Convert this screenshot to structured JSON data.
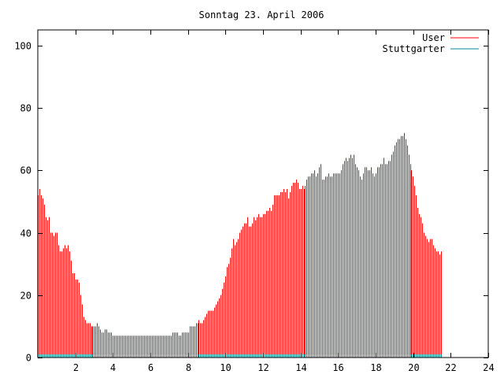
{
  "chart_data": {
    "type": "bar",
    "title": "Sonntag 23. April 2006",
    "xlabel": "",
    "ylabel": "",
    "xlim": [
      0,
      24
    ],
    "ylim": [
      0,
      105
    ],
    "x_ticks": [
      "2",
      "4",
      "6",
      "8",
      "10",
      "12",
      "14",
      "16",
      "18",
      "20",
      "22",
      "24"
    ],
    "y_ticks": [
      "0",
      "20",
      "40",
      "60",
      "80",
      "100"
    ],
    "grid": false,
    "legend_position": "top-right",
    "series": [
      {
        "name": "User",
        "color": "#ff0000",
        "x_step_hours": 0.0833,
        "values": [
          52,
          54,
          52,
          51,
          49,
          45,
          44,
          45,
          40,
          40,
          39,
          40,
          40,
          36,
          34,
          34,
          35,
          36,
          35,
          36,
          34,
          31,
          27,
          27,
          25,
          25,
          24,
          20,
          17,
          13,
          12,
          11,
          11,
          11,
          10,
          10,
          10,
          10,
          11,
          10,
          9,
          8,
          8,
          9,
          9,
          8,
          8,
          8,
          7,
          7,
          7,
          7,
          7,
          7,
          7,
          7,
          7,
          7,
          7,
          7,
          7,
          7,
          7,
          7,
          7,
          7,
          7,
          7,
          7,
          7,
          7,
          7,
          7,
          7,
          7,
          7,
          7,
          7,
          7,
          7,
          7,
          7,
          7,
          7,
          7,
          7,
          8,
          8,
          8,
          8,
          7,
          7,
          8,
          8,
          8,
          8,
          8,
          10,
          10,
          10,
          10,
          11,
          11,
          12,
          11,
          11,
          12,
          13,
          14,
          15,
          15,
          15,
          15,
          16,
          17,
          18,
          19,
          20,
          22,
          24,
          26,
          29,
          30,
          32,
          35,
          38,
          36,
          37,
          38,
          40,
          41,
          42,
          43,
          43,
          45,
          42,
          42,
          43,
          45,
          44,
          45,
          46,
          45,
          45,
          46,
          46,
          47,
          47,
          48,
          47,
          49,
          52,
          52,
          52,
          52,
          53,
          53,
          54,
          53,
          54,
          51,
          53,
          55,
          56,
          56,
          57,
          56,
          54,
          54,
          55,
          54,
          55,
          57,
          58,
          58,
          59,
          59,
          60,
          58,
          59,
          61,
          62,
          57,
          57,
          58,
          58,
          59,
          58,
          58,
          59,
          59,
          59,
          59,
          59,
          60,
          62,
          63,
          64,
          63,
          64,
          65,
          64,
          65,
          62,
          61,
          60,
          58,
          57,
          59,
          61,
          61,
          60,
          60,
          61,
          59,
          58,
          59,
          61,
          61,
          62,
          62,
          64,
          62,
          62,
          63,
          63,
          65,
          66,
          68,
          69,
          70,
          70,
          71,
          71,
          72,
          70,
          68,
          65,
          62,
          60,
          58,
          55,
          52,
          48,
          46,
          45,
          43,
          40,
          39,
          38,
          37,
          38,
          38,
          36,
          35,
          34,
          34,
          33,
          34
        ]
      },
      {
        "name": "Stuttgarter",
        "color": "#008b8b",
        "values": [
          1,
          1
        ]
      }
    ]
  }
}
